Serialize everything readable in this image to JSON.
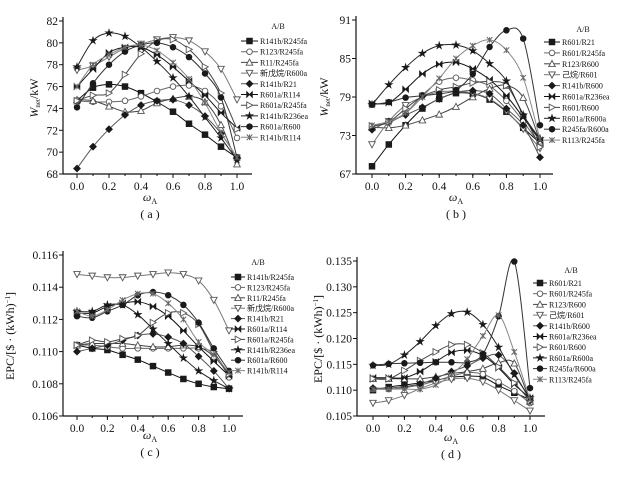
{
  "chart_data": [
    {
      "type": "line",
      "panel": "a",
      "caption": "( a )",
      "xlabel": {
        "main": "ω",
        "sub": "A"
      },
      "ylabel": {
        "main": "W",
        "sub": "net",
        "unit": "/kW"
      },
      "x": [
        0.0,
        0.1,
        0.2,
        0.3,
        0.4,
        0.5,
        0.6,
        0.7,
        0.8,
        0.9,
        1.0
      ],
      "xlim": [
        0,
        1
      ],
      "xticks": [
        "0.0",
        "0.2",
        "0.4",
        "0.6",
        "0.8",
        "1.0"
      ],
      "ylim": [
        68,
        82
      ],
      "yticks": [
        "68",
        "70",
        "72",
        "74",
        "76",
        "78",
        "80",
        "82"
      ],
      "legend_title": "A/B",
      "legend_position": "right",
      "series": [
        {
          "name": "R141b/R245fa",
          "marker": "square-filled",
          "values": [
            74.7,
            75.9,
            76.2,
            76.0,
            75.4,
            74.6,
            73.7,
            72.6,
            71.6,
            70.5,
            69.5
          ]
        },
        {
          "name": "R123/R245fa",
          "marker": "circle-open",
          "values": [
            74.7,
            74.6,
            74.6,
            74.7,
            75.1,
            75.6,
            76.0,
            76.1,
            75.6,
            74.2,
            71.3
          ]
        },
        {
          "name": "R11/R245fa",
          "marker": "triangle-open",
          "values": [
            74.8,
            74.7,
            74.2,
            73.7,
            73.8,
            74.5,
            74.9,
            75.1,
            74.6,
            72.5,
            68.9
          ]
        },
        {
          "name": "新戊烷/R600a",
          "marker": "triangle-down-open",
          "values": [
            77.5,
            77.9,
            78.7,
            79.5,
            79.9,
            80.3,
            80.5,
            80.2,
            79.2,
            77.6,
            74.8
          ]
        },
        {
          "name": "R141b/R21",
          "marker": "diamond-filled",
          "values": [
            68.5,
            70.5,
            72.1,
            73.4,
            74.3,
            74.7,
            74.8,
            74.3,
            73.3,
            71.7,
            69.5
          ]
        },
        {
          "name": "R601a/R114",
          "marker": "bowtie-filled",
          "values": [
            76.0,
            77.6,
            79.1,
            79.6,
            79.6,
            78.9,
            77.8,
            76.5,
            75.2,
            73.6,
            72.2
          ]
        },
        {
          "name": "R601a/R245fa",
          "marker": "triangle-right-open",
          "values": [
            74.7,
            75.2,
            75.4,
            77.1,
            79.0,
            80.2,
            80.3,
            79.4,
            77.8,
            75.4,
            72.1
          ]
        },
        {
          "name": "R141b/R236ea",
          "marker": "star-filled",
          "values": [
            77.8,
            80.2,
            80.9,
            80.6,
            79.6,
            78.3,
            76.8,
            75.1,
            73.2,
            71.3,
            69.3
          ]
        },
        {
          "name": "R601a/R600",
          "marker": "circle-filled",
          "values": [
            74.1,
            76.3,
            78.0,
            79.2,
            79.8,
            80.0,
            79.6,
            78.7,
            77.2,
            75.0,
            69.5
          ]
        },
        {
          "name": "R141b/R114",
          "marker": "x",
          "values": [
            76.0,
            78.0,
            78.9,
            79.6,
            79.8,
            79.3,
            78.2,
            76.7,
            74.5,
            71.8,
            69.5
          ]
        }
      ]
    },
    {
      "type": "line",
      "panel": "b",
      "caption": "( b )",
      "xlabel": {
        "main": "ω",
        "sub": "A"
      },
      "ylabel": {
        "main": "W",
        "sub": "net",
        "unit": "/kW"
      },
      "x": [
        0.0,
        0.1,
        0.2,
        0.3,
        0.4,
        0.5,
        0.6,
        0.7,
        0.8,
        0.9,
        1.0
      ],
      "xlim": [
        0,
        1
      ],
      "xticks": [
        "0.0",
        "0.2",
        "0.4",
        "0.6",
        "0.8",
        "1.0"
      ],
      "ylim": [
        67,
        91
      ],
      "yticks": [
        "67",
        "73",
        "79",
        "85",
        "91"
      ],
      "legend_title": "A/B",
      "legend_position": "right",
      "series": [
        {
          "name": "R601/R21",
          "marker": "square-filled",
          "values": [
            68.2,
            71.6,
            74.6,
            77.2,
            78.7,
            79.6,
            79.5,
            78.6,
            76.7,
            74.2,
            71.8
          ]
        },
        {
          "name": "R601/R245fa",
          "marker": "circle-open",
          "values": [
            74.4,
            75.0,
            76.5,
            79.3,
            81.4,
            82.0,
            81.6,
            80.7,
            78.4,
            75.2,
            71.5
          ]
        },
        {
          "name": "R123/R600",
          "marker": "triangle-open",
          "values": [
            74.3,
            74.2,
            74.6,
            75.4,
            76.3,
            77.5,
            79.0,
            80.3,
            80.8,
            78.9,
            72.1
          ]
        },
        {
          "name": "己烷/R601",
          "marker": "triangle-down-open",
          "values": [
            71.6,
            75.2,
            77.7,
            79.0,
            79.8,
            79.9,
            79.6,
            78.7,
            76.8,
            74.0,
            71.0
          ]
        },
        {
          "name": "R141b/R600",
          "marker": "diamond-filled",
          "values": [
            73.9,
            75.2,
            76.2,
            77.4,
            78.7,
            79.7,
            80.0,
            79.5,
            77.2,
            74.6,
            69.6
          ]
        },
        {
          "name": "R601a/R236ea",
          "marker": "bowtie-filled",
          "values": [
            78.0,
            78.1,
            80.2,
            82.6,
            84.1,
            84.4,
            83.4,
            81.7,
            79.2,
            75.8,
            72.2
          ]
        },
        {
          "name": "R601/R600",
          "marker": "triangle-right-open",
          "values": [
            74.5,
            75.1,
            77.2,
            79.1,
            80.1,
            80.6,
            81.2,
            81.4,
            80.8,
            76.3,
            71.2
          ]
        },
        {
          "name": "R601a/R600a",
          "marker": "star-filled",
          "values": [
            77.8,
            80.9,
            83.6,
            85.8,
            87.0,
            87.1,
            86.2,
            84.2,
            81.5,
            76.2,
            72.5
          ]
        },
        {
          "name": "R245fa/R600a",
          "marker": "circle-filled",
          "values": [
            77.8,
            78.2,
            78.9,
            79.2,
            79.5,
            80.1,
            82.6,
            86.8,
            89.4,
            88.1,
            74.6
          ]
        },
        {
          "name": "R113/R245fa",
          "marker": "x",
          "values": [
            74.6,
            75.2,
            76.5,
            79.0,
            81.9,
            85.0,
            87.0,
            87.9,
            86.3,
            82.0,
            72.4
          ]
        }
      ]
    },
    {
      "type": "line",
      "panel": "c",
      "caption": "( c )",
      "xlabel": {
        "main": "ω",
        "sub": "A"
      },
      "ylabel": {
        "main": "EPC/[$ · (kWh)",
        "sup": "−1",
        "unit": "]"
      },
      "x": [
        0.0,
        0.1,
        0.2,
        0.3,
        0.4,
        0.5,
        0.6,
        0.7,
        0.8,
        0.9,
        1.0
      ],
      "xlim": [
        0,
        1
      ],
      "xticks": [
        "0.0",
        "0.2",
        "0.4",
        "0.6",
        "0.8",
        "1.0"
      ],
      "ylim": [
        0.106,
        0.116
      ],
      "yticks": [
        "0.106",
        "0.108",
        "0.110",
        "0.112",
        "0.114",
        "0.116"
      ],
      "legend_title": "A/B",
      "legend_position": "right",
      "series": [
        {
          "name": "R141b/R245fa",
          "marker": "square-filled",
          "values": [
            0.1104,
            0.1102,
            0.1101,
            0.1098,
            0.1095,
            0.1091,
            0.1087,
            0.1083,
            0.108,
            0.1078,
            0.1077
          ]
        },
        {
          "name": "R123/R245fa",
          "marker": "circle-open",
          "values": [
            0.1104,
            0.1104,
            0.1103,
            0.1102,
            0.1102,
            0.1102,
            0.1102,
            0.1102,
            0.1102,
            0.1099,
            0.1084
          ]
        },
        {
          "name": "R11/R245fa",
          "marker": "triangle-open",
          "values": [
            0.1104,
            0.1105,
            0.1105,
            0.1105,
            0.1104,
            0.1103,
            0.1103,
            0.1104,
            0.1103,
            0.1097,
            0.1086
          ]
        },
        {
          "name": "新戊烷/R600a",
          "marker": "triangle-down-open",
          "values": [
            0.1148,
            0.1147,
            0.1146,
            0.1146,
            0.1147,
            0.1148,
            0.1149,
            0.1148,
            0.1144,
            0.1132,
            0.1113
          ]
        },
        {
          "name": "R141b/R21",
          "marker": "diamond-filled",
          "values": [
            0.11,
            0.1102,
            0.1104,
            0.1107,
            0.111,
            0.1111,
            0.1109,
            0.1105,
            0.1097,
            0.1088,
            0.1077
          ]
        },
        {
          "name": "R601a/R114",
          "marker": "bowtie-filled",
          "values": [
            0.1124,
            0.1124,
            0.1128,
            0.113,
            0.1131,
            0.1128,
            0.1122,
            0.1113,
            0.1103,
            0.1094,
            0.1085
          ]
        },
        {
          "name": "R601a/R245fa",
          "marker": "triangle-right-open",
          "values": [
            0.1104,
            0.1107,
            0.1106,
            0.1108,
            0.111,
            0.1118,
            0.1124,
            0.1124,
            0.1117,
            0.11,
            0.1086
          ]
        },
        {
          "name": "R141b/R236ea",
          "marker": "star-filled",
          "values": [
            0.1125,
            0.1125,
            0.1129,
            0.1129,
            0.1123,
            0.1114,
            0.1105,
            0.1096,
            0.1088,
            0.1082,
            0.1077
          ]
        },
        {
          "name": "R601a/R600",
          "marker": "circle-filled",
          "values": [
            0.1122,
            0.1121,
            0.1125,
            0.1129,
            0.1135,
            0.1137,
            0.1135,
            0.1129,
            0.1118,
            0.1102,
            0.1088
          ]
        },
        {
          "name": "R141b/R114",
          "marker": "x",
          "values": [
            0.1125,
            0.1122,
            0.1126,
            0.1132,
            0.1136,
            0.1136,
            0.113,
            0.112,
            0.1106,
            0.1098,
            0.1087
          ]
        }
      ]
    },
    {
      "type": "line",
      "panel": "d",
      "caption": "( d )",
      "xlabel": {
        "main": "ω",
        "sub": "A"
      },
      "ylabel": {
        "main": "EPC/[$ · (kWh)",
        "sup": "−1",
        "unit": "]"
      },
      "x": [
        0.0,
        0.1,
        0.2,
        0.3,
        0.4,
        0.5,
        0.6,
        0.7,
        0.8,
        0.9,
        1.0
      ],
      "xlim": [
        0,
        1
      ],
      "xticks": [
        "0.0",
        "0.2",
        "0.4",
        "0.6",
        "0.8",
        "1.0"
      ],
      "ylim": [
        0.105,
        0.135
      ],
      "yticks": [
        "0.105",
        "0.110",
        "0.115",
        "0.120",
        "0.125",
        "0.130",
        "0.135"
      ],
      "legend_title": "A/B",
      "legend_position": "right",
      "series": [
        {
          "name": "R601/R21",
          "marker": "square-filled",
          "values": [
            0.11,
            0.1106,
            0.111,
            0.1114,
            0.1119,
            0.1125,
            0.1127,
            0.1125,
            0.1109,
            0.1095,
            0.1082
          ]
        },
        {
          "name": "R601/R245fa",
          "marker": "circle-open",
          "values": [
            0.1102,
            0.1102,
            0.1105,
            0.111,
            0.1118,
            0.1127,
            0.1134,
            0.1131,
            0.1116,
            0.1098,
            0.1075
          ]
        },
        {
          "name": "R123/R600",
          "marker": "triangle-open",
          "values": [
            0.1122,
            0.1122,
            0.1122,
            0.1122,
            0.1126,
            0.1132,
            0.1136,
            0.1142,
            0.1153,
            0.1152,
            0.1078
          ]
        },
        {
          "name": "己烷/R601",
          "marker": "triangle-down-open",
          "values": [
            0.1075,
            0.108,
            0.109,
            0.1103,
            0.1114,
            0.1121,
            0.1123,
            0.1116,
            0.11,
            0.108,
            0.106
          ]
        },
        {
          "name": "R141b/R600",
          "marker": "diamond-filled",
          "values": [
            0.1104,
            0.1104,
            0.1107,
            0.1112,
            0.1123,
            0.1136,
            0.1147,
            0.1162,
            0.1168,
            0.1133,
            0.108
          ]
        },
        {
          "name": "R601a/R236ea",
          "marker": "bowtie-filled",
          "values": [
            0.1124,
            0.1124,
            0.1124,
            0.1136,
            0.1155,
            0.1173,
            0.1177,
            0.1167,
            0.1143,
            0.1111,
            0.1085
          ]
        },
        {
          "name": "R601/R600",
          "marker": "triangle-right-open",
          "values": [
            0.1122,
            0.1122,
            0.1138,
            0.1157,
            0.1174,
            0.1188,
            0.1188,
            0.1172,
            0.1145,
            0.1114,
            0.108
          ]
        },
        {
          "name": "R601a/R600a",
          "marker": "star-filled",
          "values": [
            0.1148,
            0.115,
            0.1168,
            0.1194,
            0.1225,
            0.1248,
            0.1251,
            0.1227,
            0.1183,
            0.113,
            0.1085
          ]
        },
        {
          "name": "R245fa/R600a",
          "marker": "circle-filled",
          "values": [
            0.1148,
            0.1151,
            0.1152,
            0.1153,
            0.1154,
            0.1154,
            0.1154,
            0.117,
            0.1243,
            0.1349,
            0.1104
          ]
        },
        {
          "name": "R113/R245fa",
          "marker": "x",
          "values": [
            0.1102,
            0.1102,
            0.1102,
            0.1102,
            0.111,
            0.113,
            0.116,
            0.1205,
            0.1245,
            0.1174,
            0.1082
          ]
        }
      ]
    }
  ]
}
